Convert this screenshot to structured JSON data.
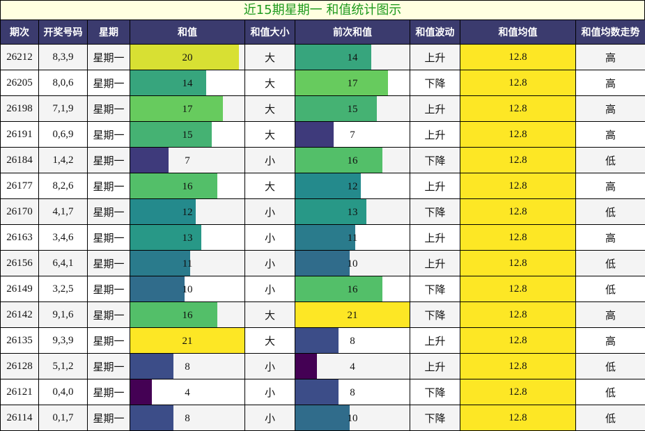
{
  "title": "近15期星期一 和值统计图示",
  "headers": [
    "期次",
    "开奖号码",
    "星期",
    "和值",
    "和值大小",
    "前次和值",
    "和值波动",
    "和值均值",
    "和值均数走势"
  ],
  "chart_data": {
    "type": "table",
    "title": "近15期星期一 和值统计图示",
    "bar_max": 21,
    "rows": [
      {
        "issue": "26212",
        "numbers": "8,3,9",
        "weekday": "星期一",
        "sum": 20,
        "size": "大",
        "prev_sum": 14,
        "trend": "上升",
        "avg": "12.8",
        "avg_trend": "高"
      },
      {
        "issue": "26205",
        "numbers": "8,0,6",
        "weekday": "星期一",
        "sum": 14,
        "size": "大",
        "prev_sum": 17,
        "trend": "下降",
        "avg": "12.8",
        "avg_trend": "高"
      },
      {
        "issue": "26198",
        "numbers": "7,1,9",
        "weekday": "星期一",
        "sum": 17,
        "size": "大",
        "prev_sum": 15,
        "trend": "上升",
        "avg": "12.8",
        "avg_trend": "高"
      },
      {
        "issue": "26191",
        "numbers": "0,6,9",
        "weekday": "星期一",
        "sum": 15,
        "size": "大",
        "prev_sum": 7,
        "trend": "上升",
        "avg": "12.8",
        "avg_trend": "高"
      },
      {
        "issue": "26184",
        "numbers": "1,4,2",
        "weekday": "星期一",
        "sum": 7,
        "size": "小",
        "prev_sum": 16,
        "trend": "下降",
        "avg": "12.8",
        "avg_trend": "低"
      },
      {
        "issue": "26177",
        "numbers": "8,2,6",
        "weekday": "星期一",
        "sum": 16,
        "size": "大",
        "prev_sum": 12,
        "trend": "上升",
        "avg": "12.8",
        "avg_trend": "高"
      },
      {
        "issue": "26170",
        "numbers": "4,1,7",
        "weekday": "星期一",
        "sum": 12,
        "size": "小",
        "prev_sum": 13,
        "trend": "下降",
        "avg": "12.8",
        "avg_trend": "低"
      },
      {
        "issue": "26163",
        "numbers": "3,4,6",
        "weekday": "星期一",
        "sum": 13,
        "size": "小",
        "prev_sum": 11,
        "trend": "上升",
        "avg": "12.8",
        "avg_trend": "高"
      },
      {
        "issue": "26156",
        "numbers": "6,4,1",
        "weekday": "星期一",
        "sum": 11,
        "size": "小",
        "prev_sum": 10,
        "trend": "上升",
        "avg": "12.8",
        "avg_trend": "低"
      },
      {
        "issue": "26149",
        "numbers": "3,2,5",
        "weekday": "星期一",
        "sum": 10,
        "size": "小",
        "prev_sum": 16,
        "trend": "下降",
        "avg": "12.8",
        "avg_trend": "低"
      },
      {
        "issue": "26142",
        "numbers": "9,1,6",
        "weekday": "星期一",
        "sum": 16,
        "size": "大",
        "prev_sum": 21,
        "trend": "下降",
        "avg": "12.8",
        "avg_trend": "高"
      },
      {
        "issue": "26135",
        "numbers": "9,3,9",
        "weekday": "星期一",
        "sum": 21,
        "size": "大",
        "prev_sum": 8,
        "trend": "上升",
        "avg": "12.8",
        "avg_trend": "高"
      },
      {
        "issue": "26128",
        "numbers": "5,1,2",
        "weekday": "星期一",
        "sum": 8,
        "size": "小",
        "prev_sum": 4,
        "trend": "上升",
        "avg": "12.8",
        "avg_trend": "低"
      },
      {
        "issue": "26121",
        "numbers": "0,4,0",
        "weekday": "星期一",
        "sum": 4,
        "size": "小",
        "prev_sum": 8,
        "trend": "下降",
        "avg": "12.8",
        "avg_trend": "低"
      },
      {
        "issue": "26114",
        "numbers": "0,1,7",
        "weekday": "星期一",
        "sum": 8,
        "size": "小",
        "prev_sum": 10,
        "trend": "下降",
        "avg": "12.8",
        "avg_trend": "低"
      }
    ]
  }
}
